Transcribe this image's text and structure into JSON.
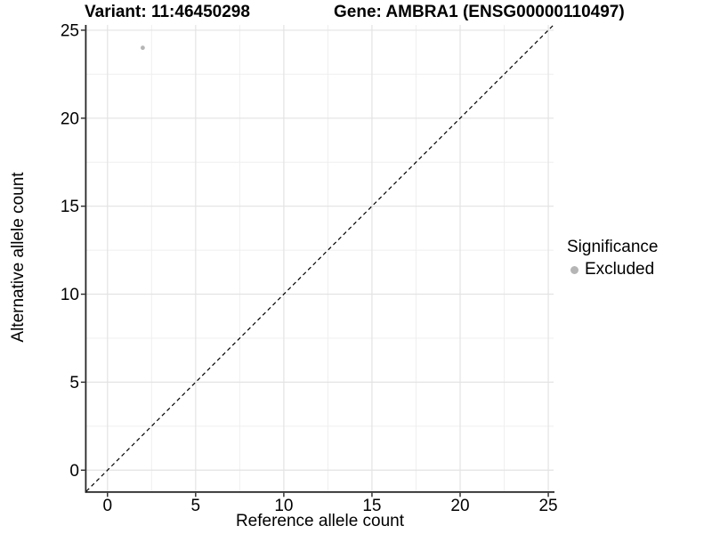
{
  "chart_data": {
    "type": "scatter",
    "title_left": "Variant: 11:46450298",
    "title_right": "Gene: AMBRA1 (ENSG00000110497)",
    "xlabel": "Reference allele count",
    "ylabel": "Alternative allele count",
    "xlim": [
      -1.2,
      25.3
    ],
    "ylim": [
      -1.2,
      25.3
    ],
    "xticks": [
      0,
      5,
      10,
      15,
      20,
      25
    ],
    "yticks": [
      0,
      5,
      10,
      15,
      20,
      25
    ],
    "xminor": [
      2.5,
      7.5,
      12.5,
      17.5,
      22.5
    ],
    "yminor": [
      2.5,
      7.5,
      12.5,
      17.5,
      22.5
    ],
    "grid": "major+minor",
    "identity_line": {
      "show": true,
      "style": "dashed",
      "color": "#000000"
    },
    "series": [
      {
        "name": "Excluded",
        "color": "#b5b5b5",
        "point_radius": 2.4,
        "points": [
          [
            2,
            24
          ]
        ]
      }
    ],
    "legend": {
      "title": "Significance",
      "position": "right",
      "items": [
        {
          "label": "Excluded",
          "color": "#b5b5b5"
        }
      ]
    },
    "colors": {
      "grid_major": "#e3e3e3",
      "grid_minor": "#efefef",
      "axis": "#262626",
      "tick_text": "#000000"
    }
  }
}
